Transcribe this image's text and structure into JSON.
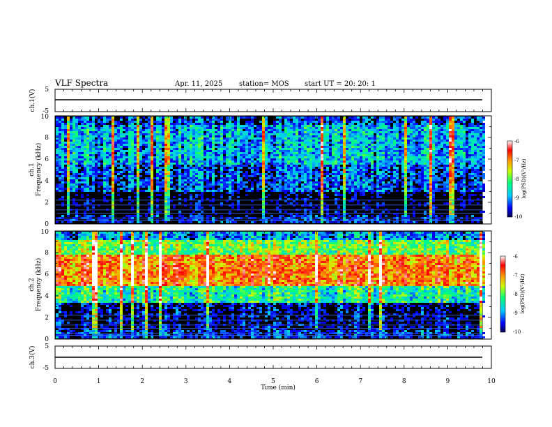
{
  "header": {
    "title": "VLF Spectra",
    "date": "Apr. 11, 2025",
    "station": "station= MOS",
    "start": "start  UT  =   20: 20: 1"
  },
  "chart_data": [
    {
      "type": "line",
      "panel": "ch1-waveform",
      "ylabel": "ch.1(V)",
      "ylim": [
        -5,
        5
      ],
      "yticks": [
        "5",
        "-5"
      ],
      "xlim": [
        0,
        10
      ],
      "series": [
        {
          "x": [
            0,
            9.8
          ],
          "y": [
            0,
            0
          ]
        }
      ]
    },
    {
      "type": "heatmap",
      "panel": "ch1-spectrogram",
      "ylabel_line1": "ch.1",
      "ylabel_line2": "Frequency (kHz)",
      "ylim": [
        0,
        10
      ],
      "yticks": [
        "0",
        "2",
        "4",
        "6",
        "8",
        "10"
      ],
      "xlim": [
        0,
        10
      ],
      "data_end_min": 9.8,
      "colorbar": {
        "label": "log(PSD)(V²/Hz)",
        "range": [
          -10,
          -6
        ],
        "ticks": [
          "-6",
          "-7",
          "-8",
          "-9",
          "-10"
        ],
        "colors": [
          "#00005a",
          "#0000ff",
          "#00c8ff",
          "#00ff7a",
          "#c8ff00",
          "#ff9600",
          "#ff0000",
          "#ffffff"
        ]
      },
      "band_levels": [
        {
          "f_khz": [
            0,
            1
          ],
          "level": -9.6
        },
        {
          "f_khz": [
            1,
            3
          ],
          "level": -10
        },
        {
          "f_khz": [
            3,
            5.5
          ],
          "level": -9.3
        },
        {
          "f_khz": [
            5.5,
            9.2
          ],
          "level": -8.9
        },
        {
          "f_khz": [
            9.2,
            10
          ],
          "level": -9.4
        }
      ]
    },
    {
      "type": "heatmap",
      "panel": "ch2-spectrogram",
      "ylabel_line1": "ch.2",
      "ylabel_line2": "Frequency (kHz)",
      "ylim": [
        0,
        10
      ],
      "yticks": [
        "0",
        "2",
        "4",
        "6",
        "8",
        "10"
      ],
      "xlim": [
        0,
        10
      ],
      "data_end_min": 9.8,
      "colorbar": {
        "label": "log(PSD)(V²/Hz)",
        "range": [
          -10,
          -6
        ],
        "ticks": [
          "-6",
          "-7",
          "-8",
          "-9",
          "-10"
        ],
        "colors": [
          "#00005a",
          "#0000ff",
          "#00c8ff",
          "#00ff7a",
          "#c8ff00",
          "#ff9600",
          "#ff0000",
          "#ffffff"
        ]
      },
      "band_levels": [
        {
          "f_khz": [
            0,
            1
          ],
          "level": -9.4
        },
        {
          "f_khz": [
            1,
            3.5
          ],
          "level": -9.7
        },
        {
          "f_khz": [
            3.5,
            5
          ],
          "level": -8.4
        },
        {
          "f_khz": [
            5,
            8
          ],
          "level": -7.0
        },
        {
          "f_khz": [
            8,
            9.2
          ],
          "level": -8.0
        },
        {
          "f_khz": [
            9.2,
            10
          ],
          "level": -9.0
        }
      ]
    },
    {
      "type": "line",
      "panel": "ch3-waveform",
      "ylabel": "ch.3(V)",
      "ylim": [
        -5,
        5
      ],
      "yticks": [
        "5",
        "-5"
      ],
      "xlim": [
        0,
        10
      ],
      "series": [
        {
          "x": [
            0,
            9.8
          ],
          "y": [
            0,
            0
          ]
        }
      ]
    }
  ],
  "xaxis": {
    "label": "Time  (min)",
    "ticks": [
      "0",
      "1",
      "2",
      "3",
      "4",
      "5",
      "6",
      "7",
      "8",
      "9",
      "10"
    ]
  }
}
